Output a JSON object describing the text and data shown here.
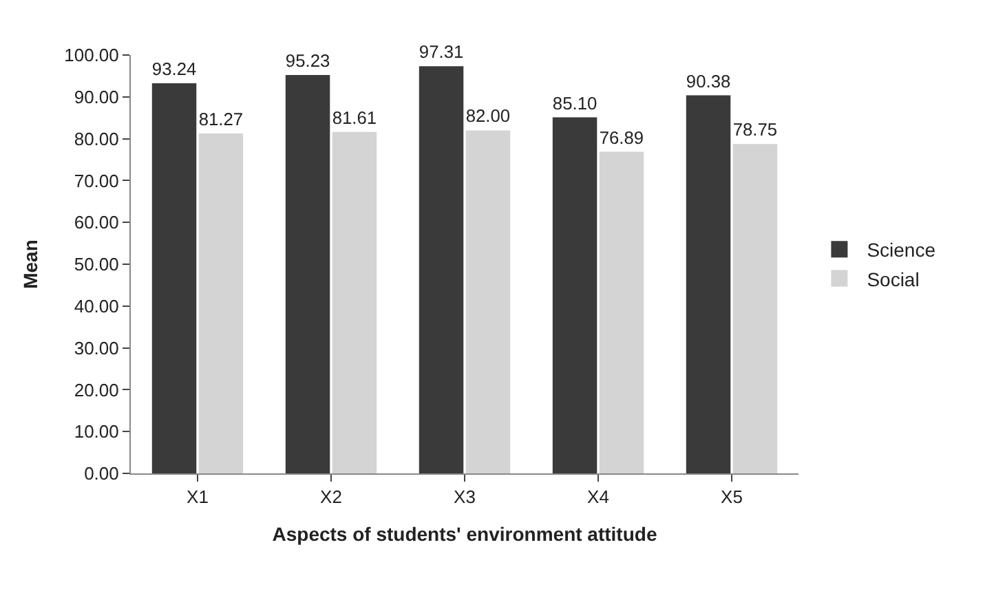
{
  "chart_data": {
    "type": "bar",
    "xlabel": "Aspects of students' environment attitude",
    "ylabel": "Mean",
    "categories": [
      "X1",
      "X2",
      "X3",
      "X4",
      "X5"
    ],
    "series": [
      {
        "name": "Science",
        "color": "#3a3a3a",
        "values": [
          93.24,
          95.23,
          97.31,
          85.1,
          90.38
        ],
        "value_labels": [
          "93.24",
          "95.23",
          "97.31",
          "85.10",
          "90.38"
        ]
      },
      {
        "name": "Social",
        "color": "#d4d4d4",
        "values": [
          81.27,
          81.61,
          82.0,
          76.89,
          78.75
        ],
        "value_labels": [
          "81.27",
          "81.61",
          "82.00",
          "76.89",
          "78.75"
        ]
      }
    ],
    "ylim": [
      0,
      100
    ],
    "yticks": [
      {
        "value": 0,
        "label": "0.00"
      },
      {
        "value": 10,
        "label": "10.00"
      },
      {
        "value": 20,
        "label": "20.00"
      },
      {
        "value": 30,
        "label": "30.00"
      },
      {
        "value": 40,
        "label": "40.00"
      },
      {
        "value": 50,
        "label": "50.00"
      },
      {
        "value": 60,
        "label": "60.00"
      },
      {
        "value": 70,
        "label": "70.00"
      },
      {
        "value": 80,
        "label": "80.00"
      },
      {
        "value": 90,
        "label": "90.00"
      },
      {
        "value": 100,
        "label": "100.00"
      }
    ],
    "legend": "right"
  }
}
